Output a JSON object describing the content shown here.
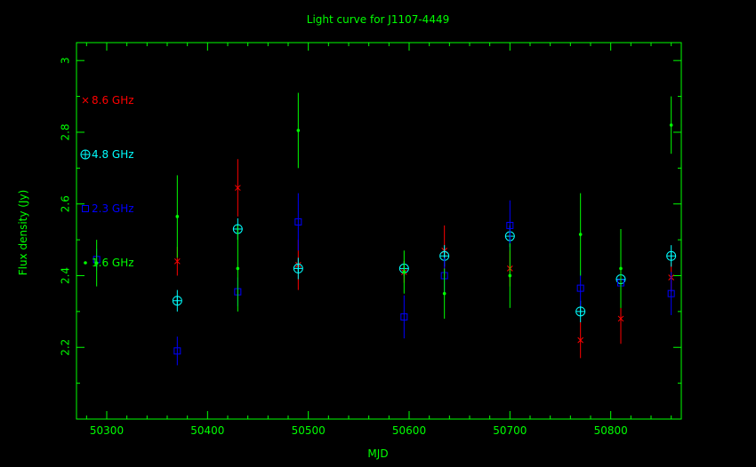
{
  "chart_data": {
    "type": "scatter",
    "title": "Light curve for J1107-4449",
    "xlabel": "MJD",
    "ylabel": "Flux density (Jy)",
    "xlim": [
      50270,
      50870
    ],
    "ylim": [
      2.0,
      3.05
    ],
    "xticks": [
      50300,
      50400,
      50500,
      50600,
      50700,
      50800
    ],
    "yticks": [
      2.2,
      2.4,
      2.6,
      2.8,
      3.0
    ],
    "ytick_labels": [
      "2.2",
      "2.4",
      "2.6",
      "2.8",
      "3"
    ],
    "grid": false,
    "legend_position": "left, inside plot",
    "axis_color": "#00ff00",
    "series": [
      {
        "name": "8.6 GHz",
        "color": "#ff0000",
        "marker": "x",
        "points": [
          {
            "x": 50370,
            "y": 2.44,
            "err": 0.04
          },
          {
            "x": 50430,
            "y": 2.645,
            "err": 0.08
          },
          {
            "x": 50490,
            "y": 2.43,
            "err": 0.07
          },
          {
            "x": 50595,
            "y": 2.41,
            "err": 0.03
          },
          {
            "x": 50635,
            "y": 2.47,
            "err": 0.07
          },
          {
            "x": 50700,
            "y": 2.42,
            "err": 0.05
          },
          {
            "x": 50770,
            "y": 2.22,
            "err": 0.05
          },
          {
            "x": 50810,
            "y": 2.28,
            "err": 0.07
          },
          {
            "x": 50860,
            "y": 2.395,
            "err": 0.04
          }
        ]
      },
      {
        "name": "4.8 GHz",
        "color": "#00ffff",
        "marker": "circle-plus",
        "points": [
          {
            "x": 50370,
            "y": 2.33,
            "err": 0.03
          },
          {
            "x": 50430,
            "y": 2.53,
            "err": 0.03
          },
          {
            "x": 50490,
            "y": 2.42,
            "err": 0.03
          },
          {
            "x": 50595,
            "y": 2.42,
            "err": 0.02
          },
          {
            "x": 50635,
            "y": 2.455,
            "err": 0.03
          },
          {
            "x": 50700,
            "y": 2.51,
            "err": 0.03
          },
          {
            "x": 50770,
            "y": 2.3,
            "err": 0.03
          },
          {
            "x": 50810,
            "y": 2.39,
            "err": 0.03
          },
          {
            "x": 50860,
            "y": 2.455,
            "err": 0.03
          }
        ]
      },
      {
        "name": "2.3 GHz",
        "color": "#0000ff",
        "marker": "square",
        "points": [
          {
            "x": 50290,
            "y": 2.445,
            "err": 0.03
          },
          {
            "x": 50370,
            "y": 2.19,
            "err": 0.04
          },
          {
            "x": 50430,
            "y": 2.355,
            "err": 0.04
          },
          {
            "x": 50490,
            "y": 2.55,
            "err": 0.08
          },
          {
            "x": 50595,
            "y": 2.285,
            "err": 0.06
          },
          {
            "x": 50635,
            "y": 2.4,
            "err": 0.05
          },
          {
            "x": 50700,
            "y": 2.54,
            "err": 0.07
          },
          {
            "x": 50770,
            "y": 2.365,
            "err": 0.05
          },
          {
            "x": 50810,
            "y": 2.38,
            "err": 0.05
          },
          {
            "x": 50860,
            "y": 2.35,
            "err": 0.06
          }
        ]
      },
      {
        "name": "1.6 GHz",
        "color": "#00ff00",
        "marker": "dot",
        "points": [
          {
            "x": 50290,
            "y": 2.435,
            "err": 0.065
          },
          {
            "x": 50370,
            "y": 2.565,
            "err": 0.115
          },
          {
            "x": 50430,
            "y": 2.42,
            "err": 0.12
          },
          {
            "x": 50490,
            "y": 2.805,
            "err": 0.105
          },
          {
            "x": 50595,
            "y": 2.41,
            "err": 0.06
          },
          {
            "x": 50635,
            "y": 2.35,
            "err": 0.07
          },
          {
            "x": 50700,
            "y": 2.4,
            "err": 0.09
          },
          {
            "x": 50770,
            "y": 2.515,
            "err": 0.115
          },
          {
            "x": 50810,
            "y": 2.42,
            "err": 0.11
          },
          {
            "x": 50860,
            "y": 2.82,
            "err": 0.08
          }
        ]
      }
    ]
  }
}
